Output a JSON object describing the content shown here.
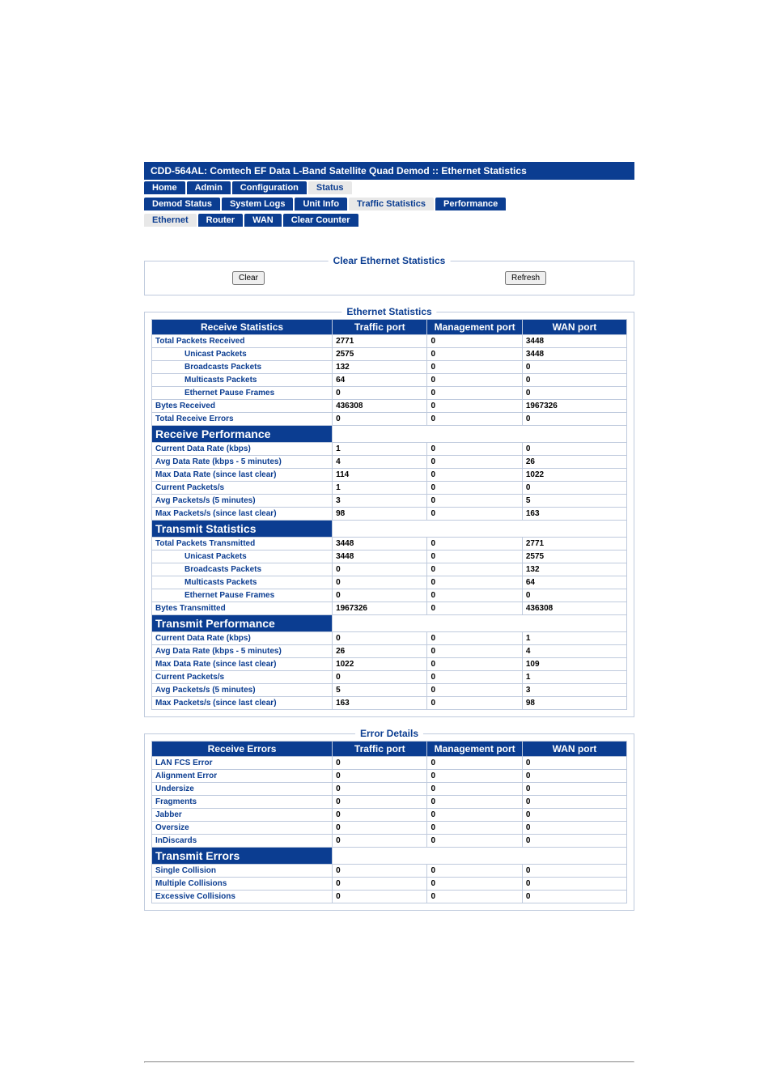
{
  "title": "CDD-564AL: Comtech EF Data L-Band Satellite Quad Demod :: Ethernet Statistics",
  "nav1": [
    "Home",
    "Admin",
    "Configuration",
    "Status"
  ],
  "nav1_selected": 3,
  "nav2": [
    "Demod Status",
    "System Logs",
    "Unit Info",
    "Traffic Statistics",
    "Performance"
  ],
  "nav2_selected": 3,
  "nav3": [
    "Ethernet",
    "Router",
    "WAN",
    "Clear Counter"
  ],
  "nav3_selected": 0,
  "clearbox": {
    "legend": "Clear Ethernet Statistics",
    "clear_btn": "Clear",
    "refresh_btn": "Refresh"
  },
  "eth_legend": "Ethernet Statistics",
  "err_legend": "Error Details",
  "cols": [
    "Traffic port",
    "Management port",
    "WAN port"
  ],
  "sections": {
    "rx_stats": "Receive Statistics",
    "rx_perf": "Receive Performance",
    "tx_stats": "Transmit Statistics",
    "tx_perf": "Transmit Performance",
    "rx_err": "Receive Errors",
    "tx_err": "Transmit Errors"
  },
  "rows": {
    "total_pkts_rx": {
      "label": "Total Packets Received",
      "v": [
        "2771",
        "0",
        "3448"
      ]
    },
    "unicast_rx": {
      "label": "Unicast Packets",
      "v": [
        "2575",
        "0",
        "3448"
      ],
      "indent": true
    },
    "broadcast_rx": {
      "label": "Broadcasts Packets",
      "v": [
        "132",
        "0",
        "0"
      ],
      "indent": true
    },
    "multicast_rx": {
      "label": "Multicasts Packets",
      "v": [
        "64",
        "0",
        "0"
      ],
      "indent": true
    },
    "pause_rx": {
      "label": "Ethernet Pause Frames",
      "v": [
        "0",
        "0",
        "0"
      ],
      "indent": true
    },
    "bytes_rx": {
      "label": "Bytes Received",
      "v": [
        "436308",
        "0",
        "1967326"
      ]
    },
    "total_rx_err": {
      "label": "Total Receive Errors",
      "v": [
        "0",
        "0",
        "0"
      ]
    },
    "cur_rate_rx": {
      "label": "Current Data Rate (kbps)",
      "v": [
        "1",
        "0",
        "0"
      ]
    },
    "avg_rate_rx": {
      "label": "Avg Data Rate (kbps - 5 minutes)",
      "v": [
        "4",
        "0",
        "26"
      ]
    },
    "max_rate_rx": {
      "label": "Max Data Rate (since last clear)",
      "v": [
        "114",
        "0",
        "1022"
      ]
    },
    "cur_pkts_rx": {
      "label": "Current Packets/s",
      "v": [
        "1",
        "0",
        "0"
      ]
    },
    "avg_pkts_rx": {
      "label": "Avg Packets/s (5 minutes)",
      "v": [
        "3",
        "0",
        "5"
      ]
    },
    "max_pkts_rx": {
      "label": "Max Packets/s (since last clear)",
      "v": [
        "98",
        "0",
        "163"
      ]
    },
    "total_pkts_tx": {
      "label": "Total Packets Transmitted",
      "v": [
        "3448",
        "0",
        "2771"
      ]
    },
    "unicast_tx": {
      "label": "Unicast Packets",
      "v": [
        "3448",
        "0",
        "2575"
      ],
      "indent": true
    },
    "broadcast_tx": {
      "label": "Broadcasts Packets",
      "v": [
        "0",
        "0",
        "132"
      ],
      "indent": true
    },
    "multicast_tx": {
      "label": "Multicasts Packets",
      "v": [
        "0",
        "0",
        "64"
      ],
      "indent": true
    },
    "pause_tx": {
      "label": "Ethernet Pause Frames",
      "v": [
        "0",
        "0",
        "0"
      ],
      "indent": true
    },
    "bytes_tx": {
      "label": "Bytes Transmitted",
      "v": [
        "1967326",
        "0",
        "436308"
      ]
    },
    "cur_rate_tx": {
      "label": "Current Data Rate (kbps)",
      "v": [
        "0",
        "0",
        "1"
      ]
    },
    "avg_rate_tx": {
      "label": "Avg Data Rate (kbps - 5 minutes)",
      "v": [
        "26",
        "0",
        "4"
      ]
    },
    "max_rate_tx": {
      "label": "Max Data Rate (since last clear)",
      "v": [
        "1022",
        "0",
        "109"
      ]
    },
    "cur_pkts_tx": {
      "label": "Current Packets/s",
      "v": [
        "0",
        "0",
        "1"
      ]
    },
    "avg_pkts_tx": {
      "label": "Avg Packets/s (5 minutes)",
      "v": [
        "5",
        "0",
        "3"
      ]
    },
    "max_pkts_tx": {
      "label": "Max Packets/s (since last clear)",
      "v": [
        "163",
        "0",
        "98"
      ]
    },
    "lan_fcs": {
      "label": "LAN FCS Error",
      "v": [
        "0",
        "0",
        "0"
      ]
    },
    "alignment": {
      "label": "Alignment Error",
      "v": [
        "0",
        "0",
        "0"
      ]
    },
    "undersize": {
      "label": "Undersize",
      "v": [
        "0",
        "0",
        "0"
      ]
    },
    "fragments": {
      "label": "Fragments",
      "v": [
        "0",
        "0",
        "0"
      ]
    },
    "jabber": {
      "label": "Jabber",
      "v": [
        "0",
        "0",
        "0"
      ]
    },
    "oversize": {
      "label": "Oversize",
      "v": [
        "0",
        "0",
        "0"
      ]
    },
    "indiscards": {
      "label": "InDiscards",
      "v": [
        "0",
        "0",
        "0"
      ]
    },
    "single_coll": {
      "label": "Single Collision",
      "v": [
        "0",
        "0",
        "0"
      ]
    },
    "multi_coll": {
      "label": "Multiple Collisions",
      "v": [
        "0",
        "0",
        "0"
      ]
    },
    "excess_coll": {
      "label": "Excessive Collisions",
      "v": [
        "0",
        "0",
        "0"
      ]
    }
  },
  "eth_table_order": [
    {
      "section": "rx_stats",
      "header": true
    },
    "total_pkts_rx",
    "unicast_rx",
    "broadcast_rx",
    "multicast_rx",
    "pause_rx",
    "bytes_rx",
    "total_rx_err",
    {
      "section": "rx_perf"
    },
    "cur_rate_rx",
    "avg_rate_rx",
    "max_rate_rx",
    "cur_pkts_rx",
    "avg_pkts_rx",
    "max_pkts_rx",
    {
      "section": "tx_stats"
    },
    "total_pkts_tx",
    "unicast_tx",
    "broadcast_tx",
    "multicast_tx",
    "pause_tx",
    "bytes_tx",
    {
      "section": "tx_perf"
    },
    "cur_rate_tx",
    "avg_rate_tx",
    "max_rate_tx",
    "cur_pkts_tx",
    "avg_pkts_tx",
    "max_pkts_tx"
  ],
  "err_table_order": [
    {
      "section": "rx_err",
      "header": true
    },
    "lan_fcs",
    "alignment",
    "undersize",
    "fragments",
    "jabber",
    "oversize",
    "indiscards",
    {
      "section": "tx_err"
    },
    "single_coll",
    "multi_coll",
    "excess_coll"
  ]
}
